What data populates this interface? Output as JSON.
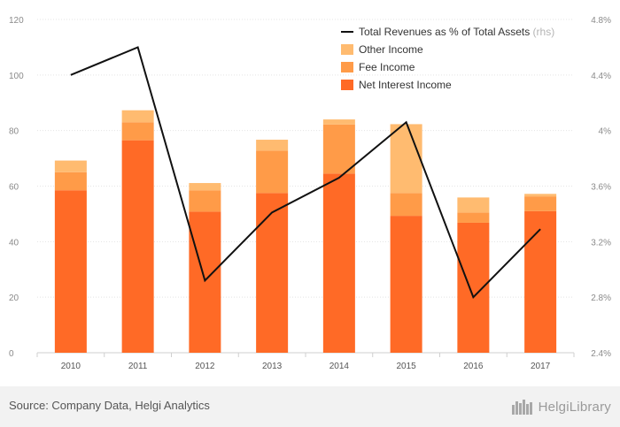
{
  "chart_data": {
    "type": "bar",
    "stacked": true,
    "categories": [
      "2010",
      "2011",
      "2012",
      "2013",
      "2014",
      "2015",
      "2016",
      "2017"
    ],
    "series": [
      {
        "name": "Net Interest Income",
        "color": "#ff6a26",
        "values": [
          58.5,
          76.5,
          50.8,
          57.5,
          64.5,
          49.3,
          46.8,
          51.0
        ]
      },
      {
        "name": "Fee Income",
        "color": "#ff9b48",
        "values": [
          6.5,
          6.5,
          7.7,
          15.3,
          17.7,
          8.2,
          3.7,
          5.3
        ]
      },
      {
        "name": "Other Income",
        "color": "#ffbb70",
        "values": [
          4.2,
          4.3,
          2.6,
          3.9,
          1.8,
          24.8,
          5.4,
          0.9
        ]
      }
    ],
    "line_series": {
      "name": "Total Revenues as % of Total Assets",
      "unit_note": "(rhs)",
      "color": "#111111",
      "axis": "right",
      "values": [
        4.4,
        4.6,
        2.92,
        3.41,
        3.66,
        4.06,
        2.8,
        3.29
      ]
    },
    "ylim": [
      0,
      120
    ],
    "yticks": [
      "0",
      "20",
      "40",
      "60",
      "80",
      "100",
      "120"
    ],
    "y2lim": [
      2.4,
      4.8
    ],
    "y2ticks": [
      "2.4%",
      "2.8%",
      "3.2%",
      "3.6%",
      "4%",
      "4.4%",
      "4.8%"
    ],
    "grid": true,
    "legend_position": "top-right"
  },
  "footer": {
    "source": "Source: Company Data, Helgi Analytics",
    "brand": "HelgiLibrary"
  }
}
